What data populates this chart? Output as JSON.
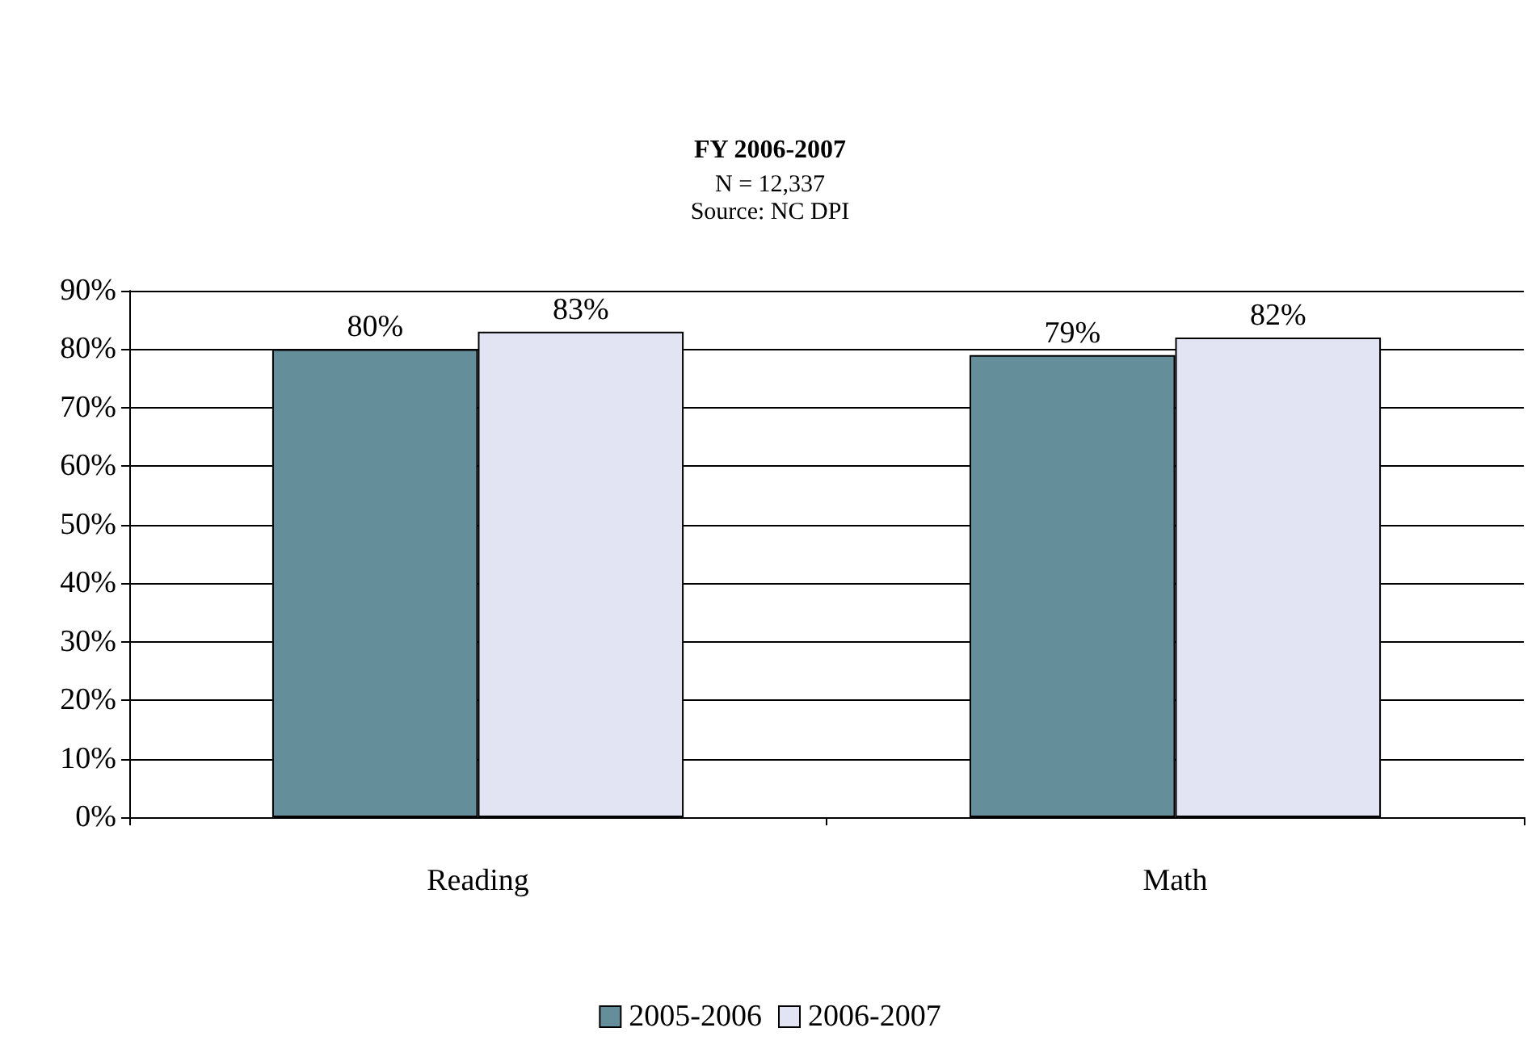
{
  "chart_data": {
    "type": "bar",
    "title": "FY 2006-2007",
    "subtitle": "N = 12,337",
    "annotations": [
      "Source: NC DPI"
    ],
    "categories": [
      "Reading",
      "Math"
    ],
    "series": [
      {
        "name": "2005-2006",
        "color": "#648e99",
        "values": [
          80,
          79
        ],
        "value_labels": [
          "80%",
          "79%"
        ]
      },
      {
        "name": "2006-2007",
        "color": "#e2e4f4",
        "values": [
          83,
          82
        ],
        "value_labels": [
          "83%",
          "82%"
        ]
      }
    ],
    "ylim": [
      0,
      90
    ],
    "yticks": [
      {
        "value": 0,
        "label": "0%"
      },
      {
        "value": 10,
        "label": "10%"
      },
      {
        "value": 20,
        "label": "20%"
      },
      {
        "value": 30,
        "label": "30%"
      },
      {
        "value": 40,
        "label": "40%"
      },
      {
        "value": 50,
        "label": "50%"
      },
      {
        "value": 60,
        "label": "60%"
      },
      {
        "value": 70,
        "label": "70%"
      },
      {
        "value": 80,
        "label": "80%"
      },
      {
        "value": 90,
        "label": "90%"
      }
    ],
    "grid": "y",
    "legend": "bottom"
  }
}
